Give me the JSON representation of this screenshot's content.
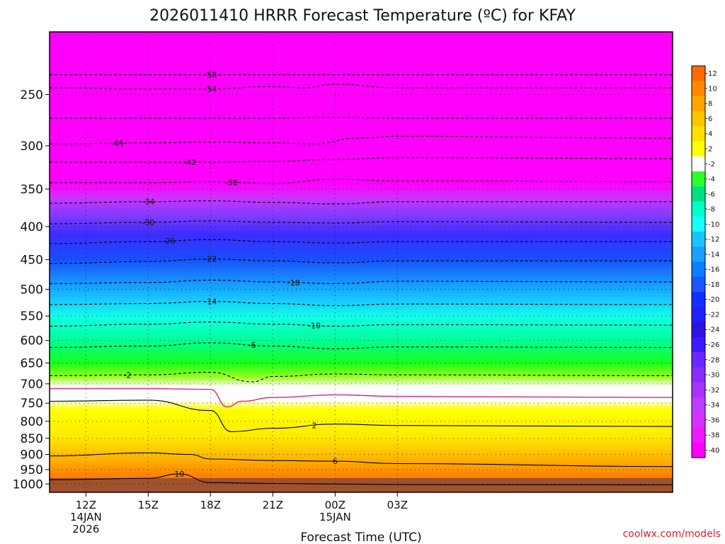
{
  "chart_data": {
    "type": "heatmap",
    "title": "2026011410 HRRR Forecast Temperature (ºC) for KFAY",
    "xlabel": "Forecast Time (UTC)",
    "ylabel": "",
    "source_text": "coolwx.com/models",
    "x_range_hours": [
      -1.75,
      28.25
    ],
    "y_range_hpa": [
      1030,
      200
    ],
    "x_ticks": [
      {
        "hour": 0,
        "label": "12Z",
        "sub1": "14JAN",
        "sub2": "2026"
      },
      {
        "hour": 3,
        "label": "15Z",
        "sub1": "",
        "sub2": ""
      },
      {
        "hour": 6,
        "label": "18Z",
        "sub1": "",
        "sub2": ""
      },
      {
        "hour": 9,
        "label": "21Z",
        "sub1": "",
        "sub2": ""
      },
      {
        "hour": 12,
        "label": "00Z",
        "sub1": "15JAN",
        "sub2": ""
      },
      {
        "hour": 15,
        "label": "03Z",
        "sub1": "",
        "sub2": ""
      }
    ],
    "y_ticks": [
      250,
      300,
      350,
      400,
      450,
      500,
      550,
      600,
      650,
      700,
      750,
      800,
      850,
      900,
      950,
      1000
    ],
    "colorbar_labels": [
      "12",
      "10",
      "8",
      "6",
      "4",
      "2",
      "-2",
      "-4",
      "-6",
      "-8",
      "-10",
      "-12",
      "-14",
      "-16",
      "-18",
      "-20",
      "-22",
      "-24",
      "-26",
      "-28",
      "-30",
      "-32",
      "-34",
      "-36",
      "-38",
      "-40"
    ],
    "contours": [
      {
        "value": -58,
        "label": "-58",
        "dashed": true,
        "label_at": 6,
        "points": [
          [
            -1.75,
            233
          ],
          [
            3,
            233
          ],
          [
            6,
            233
          ],
          [
            9,
            233
          ],
          [
            10.5,
            233
          ],
          [
            15,
            233
          ],
          [
            28.25,
            233
          ]
        ]
      },
      {
        "value": -54,
        "label": "-54",
        "dashed": true,
        "label_at": 6,
        "points": [
          [
            -1.75,
            244
          ],
          [
            3,
            245
          ],
          [
            6,
            245
          ],
          [
            9,
            243
          ],
          [
            10.5,
            244
          ],
          [
            12,
            241
          ],
          [
            15,
            244
          ],
          [
            28.25,
            244
          ]
        ]
      },
      {
        "value": -50,
        "label": "",
        "dashed": true,
        "label_at": null,
        "points": [
          [
            -1.75,
            272
          ],
          [
            3,
            272
          ],
          [
            6,
            272
          ],
          [
            9,
            272
          ],
          [
            12,
            271
          ],
          [
            15,
            272
          ],
          [
            28.25,
            272
          ]
        ]
      },
      {
        "value": -46,
        "label": "-46",
        "dashed": true,
        "label_at": 1.5,
        "points": [
          [
            -1.75,
            298
          ],
          [
            3,
            297
          ],
          [
            6,
            296
          ],
          [
            9,
            297
          ],
          [
            11,
            298
          ],
          [
            13,
            292
          ],
          [
            15,
            290
          ],
          [
            28.25,
            292
          ]
        ]
      },
      {
        "value": -42,
        "label": "-42",
        "dashed": true,
        "label_at": 5,
        "points": [
          [
            -1.75,
            318
          ],
          [
            3,
            318
          ],
          [
            6,
            318
          ],
          [
            9,
            317
          ],
          [
            12,
            315
          ],
          [
            15,
            313
          ],
          [
            28.25,
            314
          ]
        ]
      },
      {
        "value": -38,
        "label": "-38",
        "dashed": true,
        "label_at": 7,
        "points": [
          [
            -1.75,
            342
          ],
          [
            3,
            342
          ],
          [
            6,
            341
          ],
          [
            9,
            343
          ],
          [
            12,
            338
          ],
          [
            15,
            340
          ],
          [
            28.25,
            341
          ]
        ]
      },
      {
        "value": -34,
        "label": "-34",
        "dashed": true,
        "label_at": 3,
        "points": [
          [
            -1.75,
            368
          ],
          [
            3,
            366
          ],
          [
            6,
            365
          ],
          [
            9,
            367
          ],
          [
            12,
            369
          ],
          [
            15,
            366
          ],
          [
            28.25,
            366
          ]
        ]
      },
      {
        "value": -30,
        "label": "-30",
        "dashed": true,
        "label_at": 3,
        "points": [
          [
            -1.75,
            396
          ],
          [
            3,
            394
          ],
          [
            6,
            392
          ],
          [
            9,
            394
          ],
          [
            12,
            395
          ],
          [
            15,
            393
          ],
          [
            28.25,
            394
          ]
        ]
      },
      {
        "value": -26,
        "label": "-26",
        "dashed": true,
        "label_at": 4,
        "points": [
          [
            -1.75,
            425
          ],
          [
            3,
            422
          ],
          [
            6,
            419
          ],
          [
            9,
            422
          ],
          [
            12,
            424
          ],
          [
            15,
            422
          ],
          [
            28.25,
            422
          ]
        ]
      },
      {
        "value": -22,
        "label": "-22",
        "dashed": true,
        "label_at": 6,
        "points": [
          [
            -1.75,
            456
          ],
          [
            3,
            453
          ],
          [
            6,
            449
          ],
          [
            9,
            452
          ],
          [
            12,
            455
          ],
          [
            15,
            452
          ],
          [
            28.25,
            452
          ]
        ]
      },
      {
        "value": -18,
        "label": "-18",
        "dashed": true,
        "label_at": 10,
        "points": [
          [
            -1.75,
            490
          ],
          [
            3,
            488
          ],
          [
            6,
            484
          ],
          [
            9,
            487
          ],
          [
            12,
            490
          ],
          [
            15,
            486
          ],
          [
            28.25,
            487
          ]
        ]
      },
      {
        "value": -14,
        "label": "-14",
        "dashed": true,
        "label_at": 6,
        "points": [
          [
            -1.75,
            528
          ],
          [
            3,
            526
          ],
          [
            6,
            522
          ],
          [
            9,
            526
          ],
          [
            12,
            530
          ],
          [
            15,
            527
          ],
          [
            28.25,
            528
          ]
        ]
      },
      {
        "value": -10,
        "label": "-10",
        "dashed": true,
        "label_at": 11,
        "points": [
          [
            -1.75,
            570
          ],
          [
            3,
            566
          ],
          [
            6,
            562
          ],
          [
            9,
            566
          ],
          [
            12,
            570
          ],
          [
            15,
            567
          ],
          [
            28.25,
            568
          ]
        ]
      },
      {
        "value": -6,
        "label": "-6",
        "dashed": true,
        "label_at": 8,
        "points": [
          [
            -1.75,
            615
          ],
          [
            3,
            612
          ],
          [
            6,
            605
          ],
          [
            9,
            612
          ],
          [
            12,
            618
          ],
          [
            15,
            614
          ],
          [
            28.25,
            615
          ]
        ]
      },
      {
        "value": -2,
        "label": "-2",
        "dashed": true,
        "label_at": 2,
        "points": [
          [
            -1.75,
            680
          ],
          [
            3,
            678
          ],
          [
            6,
            672
          ],
          [
            8,
            695
          ],
          [
            9,
            682
          ],
          [
            12,
            676
          ],
          [
            15,
            678
          ],
          [
            28.25,
            680
          ]
        ]
      },
      {
        "value": 0,
        "label": "",
        "dashed": false,
        "magenta": true,
        "label_at": null,
        "points": [
          [
            -1.75,
            712
          ],
          [
            3,
            712
          ],
          [
            6,
            714
          ],
          [
            6.8,
            760
          ],
          [
            7.5,
            745
          ],
          [
            9,
            735
          ],
          [
            12,
            728
          ],
          [
            15,
            732
          ],
          [
            28.25,
            735
          ]
        ]
      },
      {
        "value": 2,
        "label": "2",
        "dashed": false,
        "label_at": 11,
        "points": [
          [
            -1.75,
            745
          ],
          [
            3,
            742
          ],
          [
            6,
            770
          ],
          [
            7,
            830
          ],
          [
            9,
            820
          ],
          [
            12,
            808
          ],
          [
            15,
            812
          ],
          [
            28.25,
            815
          ]
        ]
      },
      {
        "value": 6,
        "label": "6",
        "dashed": false,
        "label_at": 12,
        "points": [
          [
            -1.75,
            905
          ],
          [
            3,
            895
          ],
          [
            5,
            900
          ],
          [
            6,
            915
          ],
          [
            9,
            920
          ],
          [
            12,
            922
          ],
          [
            15,
            930
          ],
          [
            28.25,
            940
          ]
        ]
      },
      {
        "value": 10,
        "label": "10",
        "dashed": false,
        "label_at": 4.5,
        "points": [
          [
            -1.75,
            985
          ],
          [
            3,
            980
          ],
          [
            4.5,
            965
          ],
          [
            6,
            995
          ],
          [
            9,
            998
          ],
          [
            12,
            1000
          ],
          [
            15,
            1002
          ],
          [
            28.25,
            1003
          ]
        ]
      }
    ]
  }
}
